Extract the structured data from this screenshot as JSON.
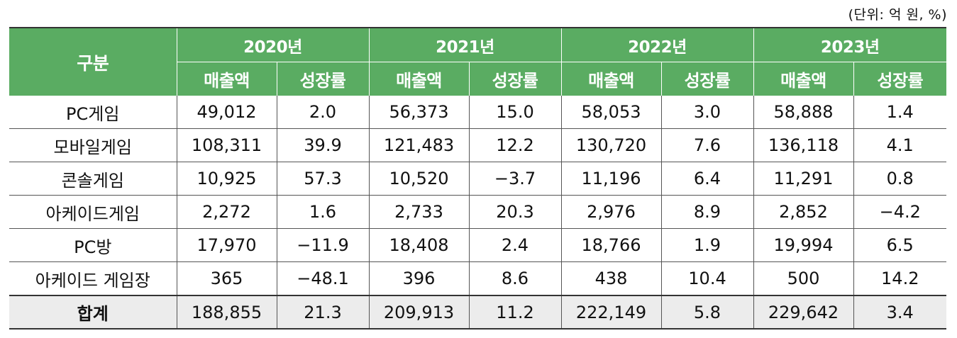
{
  "unit_note": "(단위: 억 원, %)",
  "header": {
    "category": "구분",
    "years": [
      "2020년",
      "2021년",
      "2022년",
      "2023년"
    ],
    "sales_label": "매출액",
    "growth_label": "성장률"
  },
  "rows": [
    {
      "name": "PC게임",
      "values": [
        "49,012",
        "2.0",
        "56,373",
        "15.0",
        "58,053",
        "3.0",
        "58,888",
        "1.4"
      ]
    },
    {
      "name": "모바일게임",
      "values": [
        "108,311",
        "39.9",
        "121,483",
        "12.2",
        "130,720",
        "7.6",
        "136,118",
        "4.1"
      ]
    },
    {
      "name": "콘솔게임",
      "values": [
        "10,925",
        "57.3",
        "10,520",
        "−3.7",
        "11,196",
        "6.4",
        "11,291",
        "0.8"
      ]
    },
    {
      "name": "아케이드게임",
      "values": [
        "2,272",
        "1.6",
        "2,733",
        "20.3",
        "2,976",
        "8.9",
        "2,852",
        "−4.2"
      ]
    },
    {
      "name": "PC방",
      "values": [
        "17,970",
        "−11.9",
        "18,408",
        "2.4",
        "18,766",
        "1.9",
        "19,994",
        "6.5"
      ]
    },
    {
      "name": "아케이드 게임장",
      "values": [
        "365",
        "−48.1",
        "396",
        "8.6",
        "438",
        "10.4",
        "500",
        "14.2"
      ]
    }
  ],
  "total": {
    "name": "합계",
    "values": [
      "188,855",
      "21.3",
      "209,913",
      "11.2",
      "222,149",
      "5.8",
      "229,642",
      "3.4"
    ]
  },
  "colors": {
    "header_bg": "#5aac62",
    "total_bg": "#ececec"
  }
}
